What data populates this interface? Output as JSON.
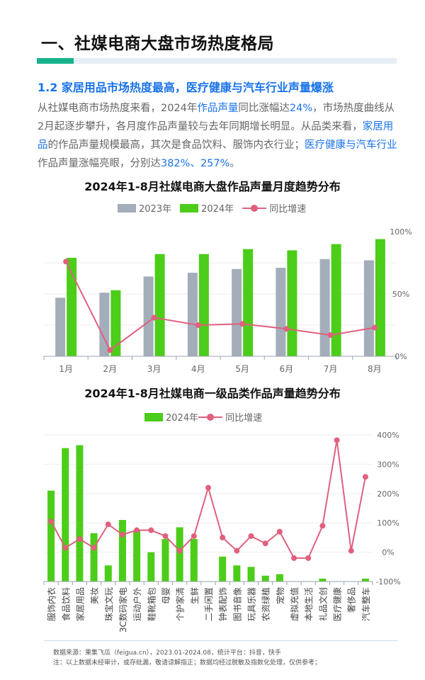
{
  "header": {
    "section_title": "一、社媒电商大盘市场热度格局",
    "subtitle": "1.2 家居用品市场热度最高，医疗健康与汽车行业声量爆涨"
  },
  "paragraph": {
    "p1": "从社媒电商市场热度来看，2024年",
    "h1": "作品声量",
    "p2": "同比涨幅达",
    "h2": "24%",
    "p3": "，市场热度曲线从2月起逐步攀升，各月度作品声量较与去年同期增长明显。从品类来看，",
    "h3": "家居用品",
    "p4": "的作品声量规模最高，其次是食品饮料、服饰内衣行业；",
    "h4": "医疗健康与汽车行业",
    "p5": "作品声量涨幅亮眼，分别达",
    "h5": "382%、257%",
    "p6": "。"
  },
  "colors": {
    "bar_2023": "#a4adba",
    "bar_2024": "#4ccd19",
    "line": "#e0607e",
    "accent": "#1a73e8",
    "title_bar": "#18b38d"
  },
  "chart_data": [
    {
      "type": "bar",
      "title": "2024年1-8月社媒电商大盘作品声量月度趋势分布",
      "categories": [
        "1月",
        "2月",
        "3月",
        "4月",
        "5月",
        "6月",
        "7月",
        "8月"
      ],
      "series": [
        {
          "name": "2023年",
          "values": [
            47,
            51,
            64,
            67,
            70,
            71,
            78,
            77
          ]
        },
        {
          "name": "2024年",
          "values": [
            79,
            53,
            82,
            82,
            86,
            85,
            90,
            94
          ]
        },
        {
          "name": "同比增速",
          "axis": "right",
          "values": [
            76,
            5,
            31,
            25,
            26,
            22,
            17,
            23
          ]
        }
      ],
      "ylim_left": [
        0,
        100
      ],
      "right_axis": {
        "ticks": [
          "100%",
          "50%",
          "0%"
        ],
        "range": [
          0,
          100
        ]
      },
      "legend_position": "top"
    },
    {
      "type": "bar",
      "title": "2024年1-8月社媒电商一级品类作品声量趋势分布",
      "categories": [
        "服饰内衣",
        "食品饮料",
        "家居用品",
        "美妆",
        "珠宝文玩",
        "3C数码家电",
        "运动户外",
        "鞋靴箱包",
        "母婴",
        "个护家清",
        "生鲜",
        "二手闲置",
        "钟表配饰",
        "图书音像",
        "玩具乐器",
        "农资绿植",
        "宠物",
        "虚拟充值",
        "本地生活",
        "礼品文创",
        "医疗健康",
        "奢侈品",
        "汽车整车"
      ],
      "series": [
        {
          "name": "2024年",
          "values": [
            62,
            91,
            93,
            33,
            11,
            42,
            35,
            20,
            29,
            37,
            29,
            0,
            17,
            11,
            10,
            4,
            5,
            0,
            0,
            2,
            0,
            0,
            2
          ]
        },
        {
          "name": "同比增速",
          "axis": "right",
          "values": [
            105,
            15,
            45,
            15,
            95,
            60,
            75,
            75,
            55,
            5,
            55,
            220,
            50,
            5,
            55,
            30,
            70,
            -20,
            -20,
            90,
            382,
            5,
            257
          ]
        }
      ],
      "ylim_left": [
        0,
        100
      ],
      "right_axis": {
        "ticks": [
          "400%",
          "300%",
          "200%",
          "100%",
          "0%",
          "-100%"
        ],
        "range": [
          -100,
          400
        ]
      },
      "legend_position": "top"
    }
  ],
  "footer": {
    "source": "数据来源：果集飞瓜（feigua.cn），2023.01-2024.08，统计平台：抖音，快手",
    "note": "注：以上数据未经审计，或存纰漏，敬请谅解指正；数据均经过脱敏及指数化处理，仅供参考；"
  }
}
